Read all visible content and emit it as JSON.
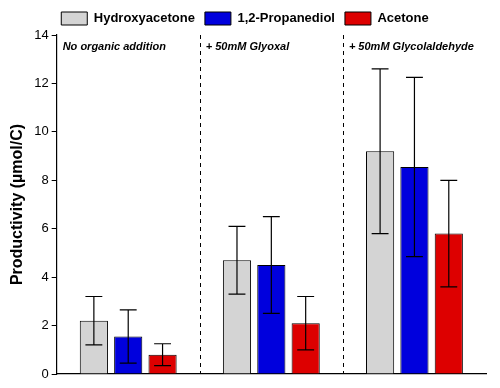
{
  "chart_data": {
    "type": "bar",
    "categories": [
      "No organic addition",
      "+ 50mM Glyoxal",
      "+ 50mM Glycolaldehyde"
    ],
    "series": [
      {
        "name": "Hydroxyacetone",
        "color": "#d4d4d4",
        "values": [
          2.2,
          4.7,
          9.2
        ],
        "errors": [
          1.0,
          1.4,
          3.4
        ]
      },
      {
        "name": "1,2-Propanediol",
        "color": "#0000dd",
        "values": [
          1.55,
          4.5,
          8.55
        ],
        "errors": [
          1.1,
          2.0,
          3.7
        ]
      },
      {
        "name": "Acetone",
        "color": "#dd0000",
        "values": [
          0.8,
          2.1,
          5.8
        ],
        "errors": [
          0.45,
          1.1,
          2.2
        ]
      }
    ],
    "ylabel": "Productivity (µmol/C)",
    "ylim": [
      0,
      14
    ],
    "yticks": [
      0,
      2,
      4,
      6,
      8,
      10,
      12,
      14
    ],
    "grid": false,
    "legend": "top",
    "tick_labels": "y"
  }
}
